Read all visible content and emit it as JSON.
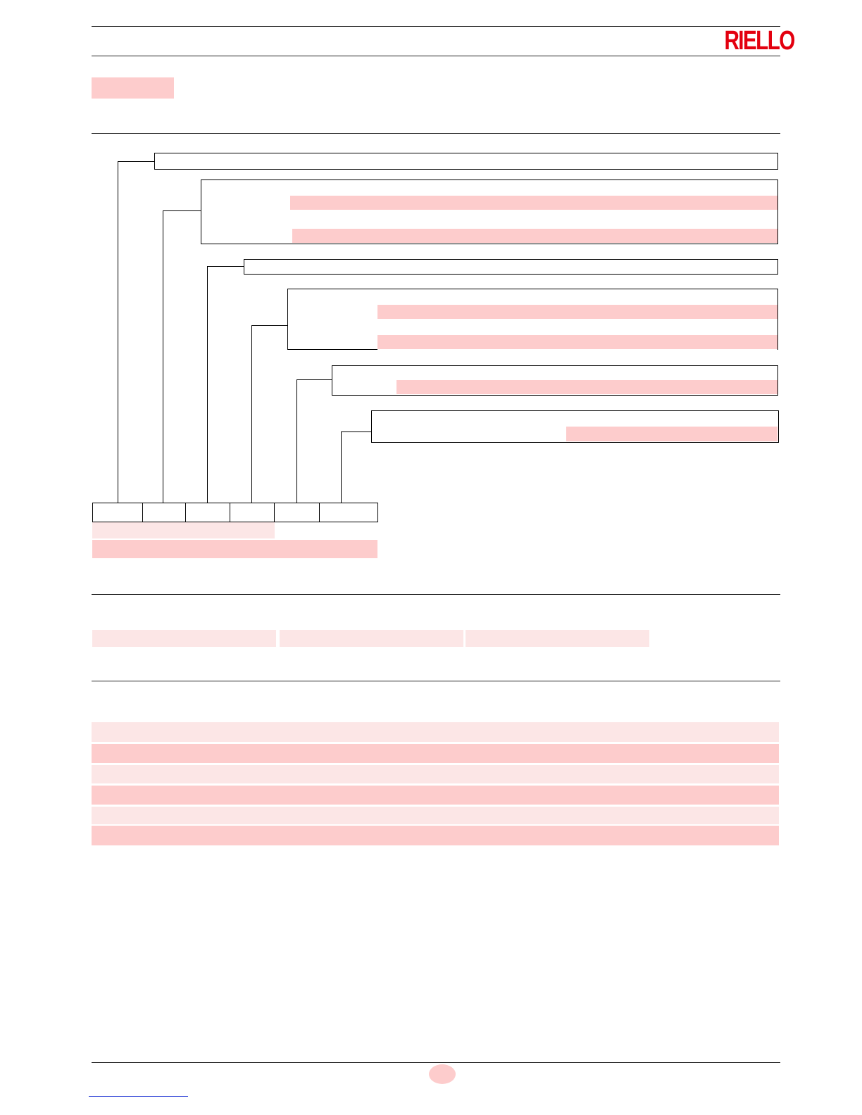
{
  "header": {
    "brand": "RIELLO",
    "brand_color": "#e3000f"
  },
  "colors": {
    "highlight": "#fdcccc",
    "highlight_light": "#fce6e6",
    "link": "#2a3fd6"
  }
}
